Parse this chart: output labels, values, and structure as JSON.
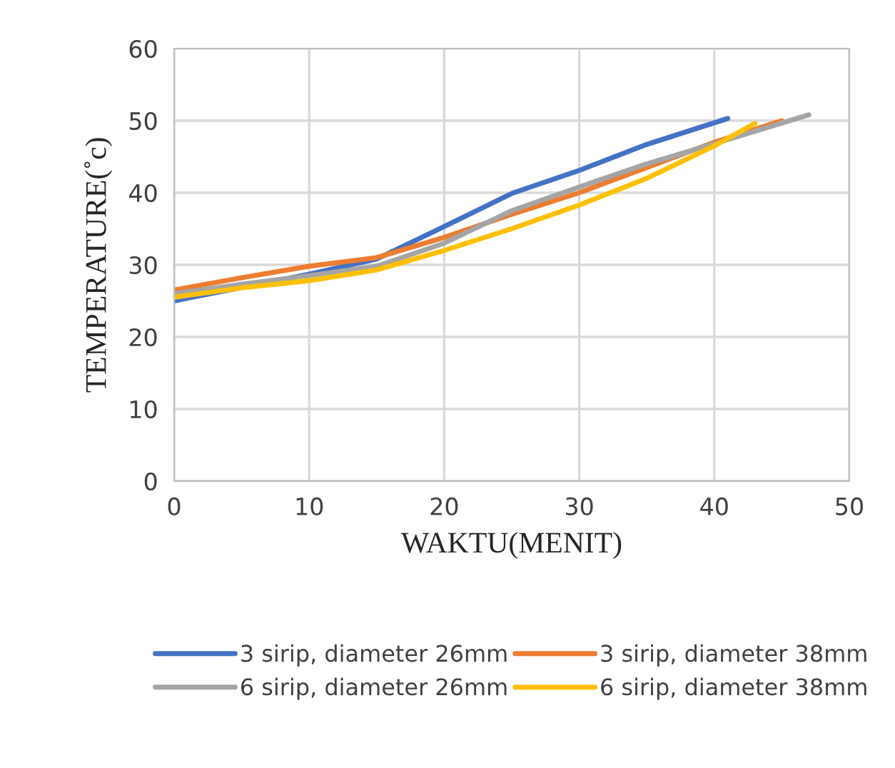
{
  "chart_data": {
    "type": "line",
    "xlabel": "WAKTU(MENIT)",
    "ylabel": "TEMPERATURE(˚c)",
    "xlim": [
      0,
      50
    ],
    "xticks": [
      0,
      10,
      20,
      30,
      40,
      50
    ],
    "ylim": [
      0,
      60
    ],
    "yticks": [
      0,
      10,
      20,
      30,
      40,
      50,
      60
    ],
    "grid": true,
    "legend": "bottom",
    "marker": "none",
    "line_style": "solid",
    "series": [
      {
        "name": "3 sirip, diameter 26mm",
        "color": "#4472c4",
        "x": [
          0,
          10,
          15,
          20,
          25,
          30,
          35,
          41
        ],
        "values": [
          25,
          28.7,
          30.8,
          35.3,
          39.9,
          43.1,
          46.7,
          50.3
        ]
      },
      {
        "name": "3 sirip, diameter 38mm",
        "color": "#ed7d31",
        "x": [
          0,
          5,
          10,
          15,
          20,
          25,
          30,
          35,
          40,
          45
        ],
        "values": [
          26.5,
          28.2,
          29.8,
          31,
          33.8,
          37,
          40,
          43.5,
          47,
          50
        ]
      },
      {
        "name": "6 sirip, diameter 26mm",
        "color": "#a5a5a5",
        "x": [
          0,
          5,
          10,
          15,
          20,
          25,
          30,
          35,
          40,
          47
        ],
        "values": [
          26,
          27.3,
          28.5,
          29.8,
          33,
          37.5,
          40.8,
          44,
          46.8,
          50.8
        ]
      },
      {
        "name": "6 sirip, diameter 38mm",
        "color": "#ffc000",
        "x": [
          0,
          5,
          10,
          15,
          20,
          25,
          30,
          35,
          40,
          43
        ],
        "values": [
          25.5,
          26.8,
          27.8,
          29.3,
          32,
          35,
          38.3,
          42,
          46.5,
          49.6
        ]
      }
    ]
  }
}
